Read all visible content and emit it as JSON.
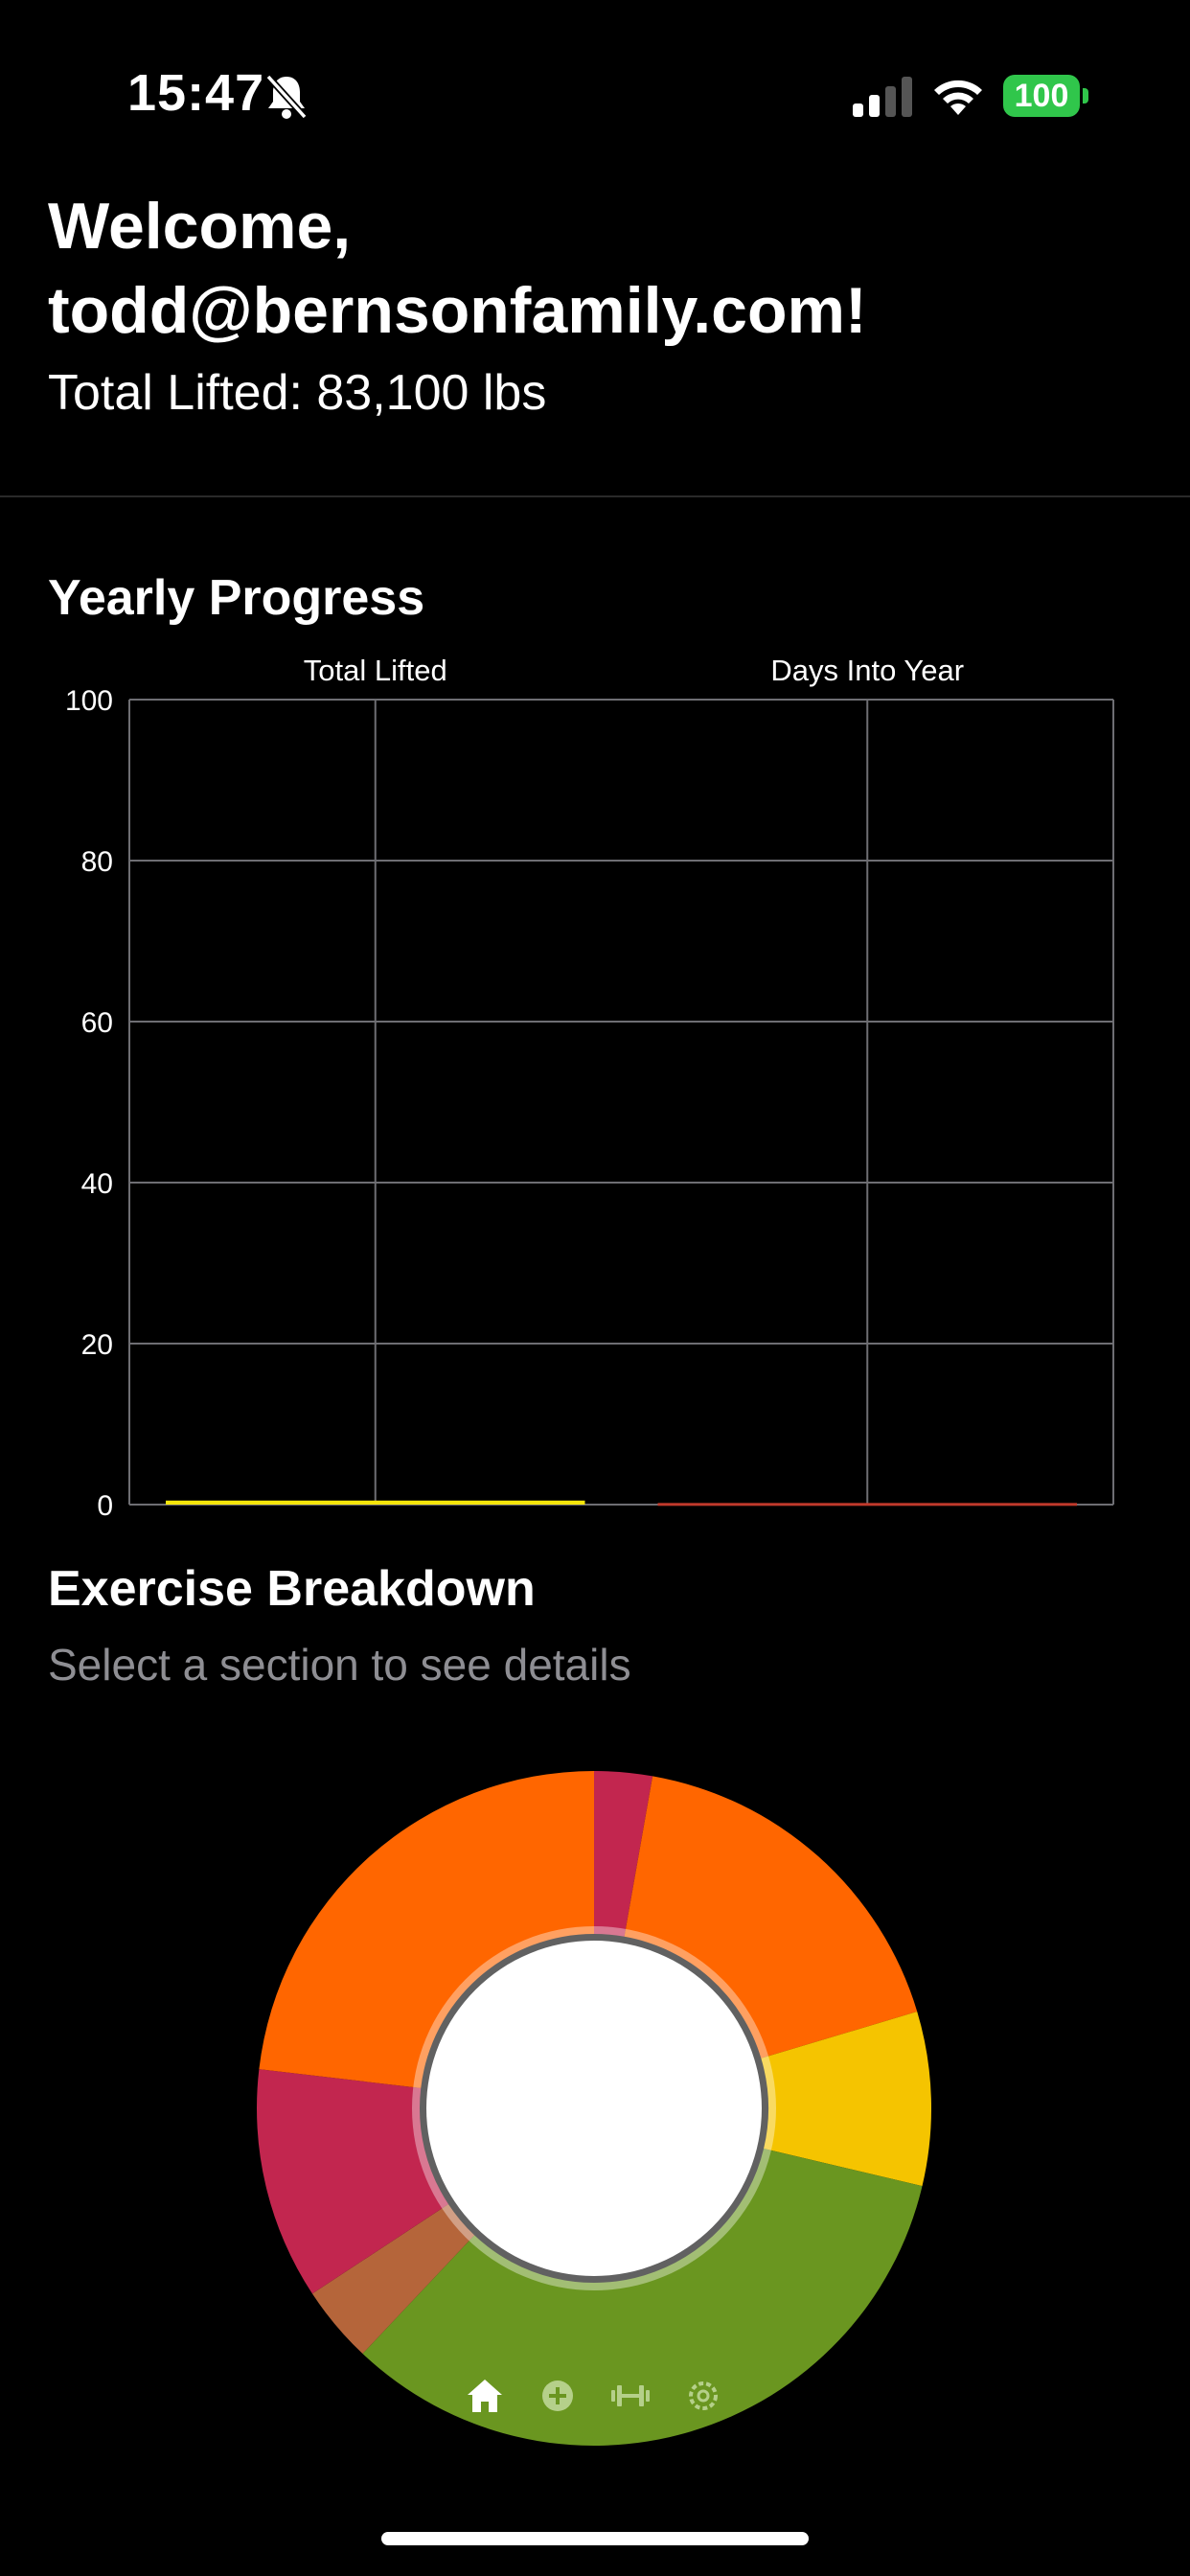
{
  "status_bar": {
    "time": "15:47",
    "battery": "100",
    "icons": [
      "bell-slash-icon",
      "cellular-signal-icon",
      "wifi-icon",
      "battery-icon"
    ],
    "battery_color": "#30c64b"
  },
  "header": {
    "welcome": "Welcome, todd@bernsonfamily.com!",
    "total_lifted": "Total Lifted: 83,100 lbs"
  },
  "yearly_progress": {
    "title": "Yearly Progress"
  },
  "exercise_breakdown": {
    "title": "Exercise Breakdown",
    "subtitle": "Select a section to see details"
  },
  "tab_bar": {
    "items": [
      {
        "icon": "home-icon",
        "active": true
      },
      {
        "icon": "add-circle-icon",
        "active": false
      },
      {
        "icon": "dumbbell-icon",
        "active": false
      },
      {
        "icon": "settings-icon",
        "active": false
      }
    ],
    "active_color": "#ffffff",
    "inactive_color": "#b5d08a"
  },
  "chart_data": [
    {
      "type": "bar",
      "categories": [
        "Total Lifted",
        "Days Into Year"
      ],
      "values": [
        0.5,
        0.2
      ],
      "colors": [
        "#f5e50a",
        "#c0392b"
      ],
      "ylim": [
        0,
        100
      ],
      "yticks": [
        0,
        20,
        40,
        60,
        80,
        100
      ],
      "grid": true
    },
    {
      "type": "pie",
      "donut": true,
      "segments": [
        {
          "value": 3,
          "color": "#c2264f"
        },
        {
          "value": 19,
          "color": "#ff6600"
        },
        {
          "value": 9,
          "color": "#f5c400"
        },
        {
          "value": 36,
          "color": "#6a9620"
        },
        {
          "value": 4,
          "color": "#b5653a"
        },
        {
          "value": 12,
          "color": "#c2264f"
        },
        {
          "value": 25,
          "color": "#ff6600"
        }
      ]
    }
  ]
}
